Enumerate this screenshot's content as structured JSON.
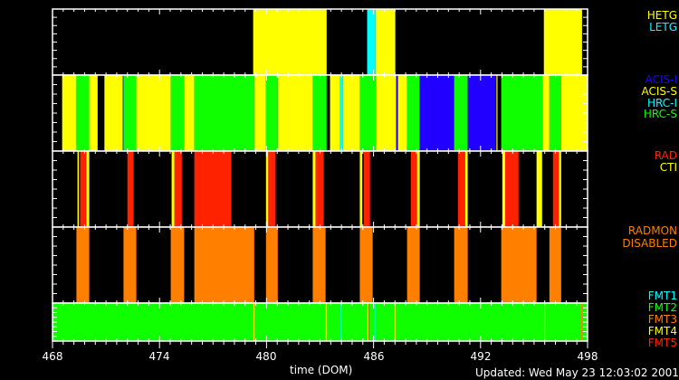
{
  "chart_data": {
    "type": "timeline",
    "xlabel": "time (DOM)",
    "xlim": [
      468,
      498
    ],
    "x_ticks": [
      "468",
      "474",
      "480",
      "486",
      "492",
      "498"
    ],
    "updated": "Updated: Wed May 23 12:03:02 2001",
    "colors": {
      "yellow": "#ffff00",
      "cyan": "#00ffff",
      "green": "#10ff00",
      "blue": "#2200ff",
      "red": "#ff2200",
      "orange": "#ff7f00"
    },
    "panels": [
      {
        "name": "gratings",
        "legend": [
          {
            "label": "HETG",
            "color": "#ffff00"
          },
          {
            "label": "LETG",
            "color": "#00ffff"
          }
        ],
        "background": "#000000",
        "segments": [
          [
            479.25,
            483.37,
            "HETG"
          ],
          [
            485.64,
            486.11,
            "LETG"
          ],
          [
            486.11,
            487.22,
            "HETG"
          ],
          [
            495.55,
            497.69,
            "HETG"
          ]
        ]
      },
      {
        "name": "instruments",
        "legend": [
          {
            "label": "ACIS-I",
            "color": "#2200ff"
          },
          {
            "label": "ACIS-S",
            "color": "#ffff00"
          },
          {
            "label": "HRC-I",
            "color": "#00ffff"
          },
          {
            "label": "HRC-S",
            "color": "#10ff00"
          }
        ],
        "background": "#000000",
        "segments": [
          [
            468.54,
            469.34,
            "ACIS-S"
          ],
          [
            469.34,
            470.06,
            "HRC-S"
          ],
          [
            470.06,
            470.53,
            "ACIS-S"
          ],
          [
            470.91,
            471.94,
            "ACIS-S"
          ],
          [
            471.94,
            471.98,
            "ACIS-I"
          ],
          [
            471.98,
            472.7,
            "HRC-S"
          ],
          [
            472.7,
            474.63,
            "ACIS-S"
          ],
          [
            474.63,
            475.38,
            "HRC-S"
          ],
          [
            475.38,
            475.95,
            "ACIS-S"
          ],
          [
            475.95,
            479.31,
            "HRC-S"
          ],
          [
            479.31,
            479.97,
            "ACIS-S"
          ],
          [
            479.97,
            480.63,
            "HRC-S"
          ],
          [
            480.63,
            482.59,
            "ACIS-S"
          ],
          [
            482.59,
            483.37,
            "HRC-S"
          ],
          [
            483.56,
            484.13,
            "ACIS-S"
          ],
          [
            484.13,
            484.28,
            "HRC-I"
          ],
          [
            484.28,
            485.23,
            "ACIS-S"
          ],
          [
            485.23,
            486.15,
            "HRC-S"
          ],
          [
            486.15,
            487.27,
            "ACIS-S"
          ],
          [
            487.27,
            487.37,
            "ACIS-I"
          ],
          [
            487.37,
            487.88,
            "ACIS-S"
          ],
          [
            487.88,
            488.59,
            "HRC-S"
          ],
          [
            488.59,
            490.52,
            "ACIS-I"
          ],
          [
            490.52,
            491.28,
            "HRC-S"
          ],
          [
            491.28,
            492.85,
            "ACIS-I"
          ],
          [
            492.89,
            492.95,
            "ACIS-S"
          ],
          [
            493.16,
            495.49,
            "HRC-S"
          ],
          [
            495.49,
            495.86,
            "ACIS-S"
          ],
          [
            495.86,
            496.52,
            "HRC-S"
          ],
          [
            496.52,
            498.0,
            "ACIS-S"
          ]
        ]
      },
      {
        "name": "radiation",
        "legend": [
          {
            "label": "RAD",
            "color": "#ff2200"
          },
          {
            "label": "CTI",
            "color": "#ffff00"
          }
        ],
        "background": "#000000",
        "segments": [
          [
            469.4,
            469.48,
            "CTI"
          ],
          [
            469.55,
            469.9,
            "RAD"
          ],
          [
            469.9,
            470.06,
            "CTI"
          ],
          [
            472.2,
            472.55,
            "RAD"
          ],
          [
            474.68,
            474.84,
            "CTI"
          ],
          [
            474.84,
            475.25,
            "RAD"
          ],
          [
            475.95,
            478.03,
            "RAD"
          ],
          [
            479.97,
            480.1,
            "CTI"
          ],
          [
            480.1,
            480.51,
            "RAD"
          ],
          [
            482.59,
            482.75,
            "CTI"
          ],
          [
            482.75,
            483.21,
            "RAD"
          ],
          [
            485.23,
            485.37,
            "CTI"
          ],
          [
            485.45,
            485.8,
            "RAD"
          ],
          [
            488.09,
            488.44,
            "RAD"
          ],
          [
            488.44,
            488.59,
            "CTI"
          ],
          [
            490.73,
            491.14,
            "RAD"
          ],
          [
            491.14,
            491.28,
            "CTI"
          ],
          [
            493.22,
            493.38,
            "CTI"
          ],
          [
            493.38,
            494.13,
            "RAD"
          ],
          [
            495.14,
            495.45,
            "CTI"
          ],
          [
            496.06,
            496.39,
            "RAD"
          ],
          [
            496.39,
            496.52,
            "CTI"
          ]
        ]
      },
      {
        "name": "radmon",
        "legend": [
          {
            "label": "RADMON",
            "color": "#ff7f00"
          },
          {
            "label": "DISABLED",
            "color": "#ff7f00"
          }
        ],
        "background": "#000000",
        "segments": [
          [
            469.34,
            470.06,
            "RADMON"
          ],
          [
            471.98,
            472.7,
            "RADMON"
          ],
          [
            474.63,
            475.38,
            "RADMON"
          ],
          [
            475.95,
            479.31,
            "RADMON"
          ],
          [
            479.97,
            480.63,
            "RADMON"
          ],
          [
            482.59,
            483.31,
            "RADMON"
          ],
          [
            485.23,
            485.95,
            "RADMON"
          ],
          [
            487.88,
            488.59,
            "RADMON"
          ],
          [
            490.52,
            491.28,
            "RADMON"
          ],
          [
            493.16,
            495.14,
            "RADMON"
          ],
          [
            495.86,
            496.52,
            "RADMON"
          ]
        ]
      },
      {
        "name": "formats",
        "legend": [
          {
            "label": "FMT1",
            "color": "#00ffff"
          },
          {
            "label": "FMT2",
            "color": "#10ff00"
          },
          {
            "label": "FMT3",
            "color": "#ff7f00"
          },
          {
            "label": "FMT4",
            "color": "#ffff00"
          },
          {
            "label": "FMT5",
            "color": "#ff2200"
          }
        ],
        "background": "#10ff00",
        "segments": [
          [
            479.27,
            479.31,
            "FMT4"
          ],
          [
            483.32,
            483.36,
            "FMT4"
          ],
          [
            484.16,
            484.21,
            "FMT1"
          ],
          [
            485.66,
            485.72,
            "FMT4"
          ],
          [
            485.72,
            485.76,
            "FMT5"
          ],
          [
            486.05,
            486.1,
            "FMT1"
          ],
          [
            487.18,
            487.22,
            "FMT4"
          ],
          [
            495.57,
            495.61,
            "FMT4"
          ],
          [
            497.64,
            497.69,
            "FMT3"
          ]
        ]
      }
    ]
  }
}
